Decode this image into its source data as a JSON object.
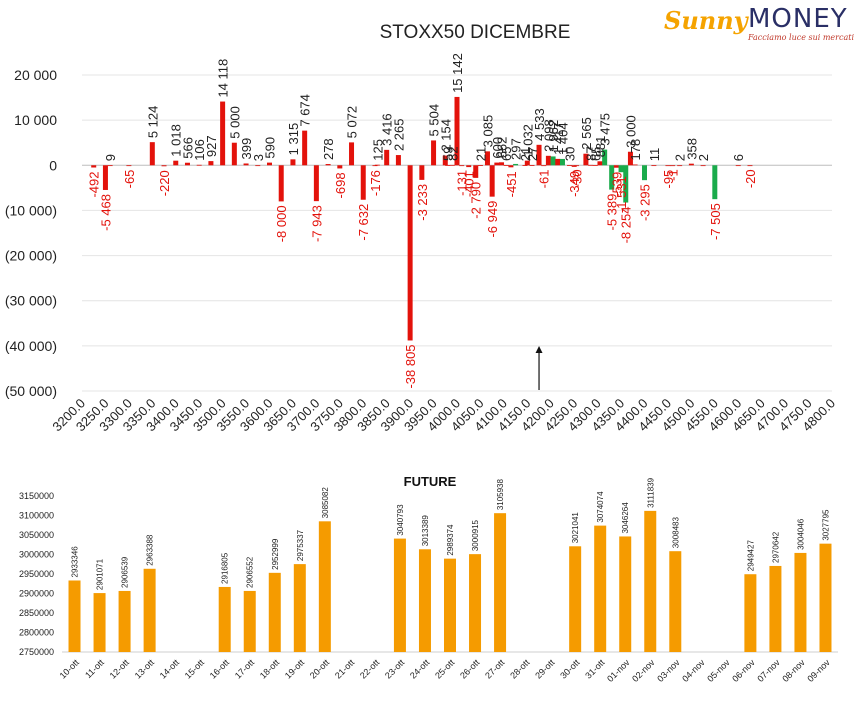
{
  "logo": {
    "brand_left": "Sunny",
    "brand_right": "MONEY",
    "tagline": "Facciamo luce sui mercati"
  },
  "chart_data": [
    {
      "type": "bar",
      "title": "STOXX50 DICEMBRE",
      "ylim": [
        -50000,
        20000
      ],
      "y_ticks": [
        20000,
        10000,
        0,
        -10000,
        -20000,
        -30000,
        -40000,
        -50000
      ],
      "y_tick_labels": [
        "20 000",
        "10 000",
        "0",
        "(10 000)",
        "(20 000)",
        "(30 000)",
        "(40 000)",
        "(50 000)"
      ],
      "x_ticks": [
        3200,
        3250,
        3300,
        3350,
        3400,
        3450,
        3500,
        3550,
        3600,
        3650,
        3700,
        3750,
        3800,
        3850,
        3900,
        3950,
        4000,
        4050,
        4100,
        4150,
        4200,
        4250,
        4300,
        4350,
        4400,
        4450,
        4500,
        4550,
        4600,
        4650,
        4700,
        4750,
        4800
      ],
      "x_tick_labels": [
        "3200.0",
        "3250.0",
        "3300.0",
        "3350.0",
        "3400.0",
        "3450.0",
        "3500.0",
        "3550.0",
        "3600.0",
        "3650.0",
        "3700.0",
        "3750.0",
        "3800.0",
        "3850.0",
        "3900.0",
        "3950.0",
        "4000.0",
        "4050.0",
        "4100.0",
        "4150.0",
        "4200.0",
        "4250.0",
        "4300.0",
        "4350.0",
        "4400.0",
        "4450.0",
        "4500.0",
        "4550.0",
        "4600.0",
        "4650.0",
        "4700.0",
        "4750.0",
        "4800.0"
      ],
      "grid": true,
      "colors": {
        "red": "#e3120b",
        "green": "#1aab4b",
        "negative_label": "#e3120b",
        "positive_label": "#222222"
      },
      "marker_arrow_x": 4175,
      "bars": [
        {
          "x": 3225,
          "value": -492,
          "label": "-492",
          "color": "red"
        },
        {
          "x": 3250,
          "value": -5468,
          "label": "-5 468",
          "color": "red"
        },
        {
          "x": 3260,
          "value": 9,
          "label": "9",
          "color": "red"
        },
        {
          "x": 3300,
          "value": -65,
          "label": "-65",
          "color": "red"
        },
        {
          "x": 3350,
          "value": 5124,
          "label": "5 124",
          "color": "red"
        },
        {
          "x": 3375,
          "value": -220,
          "label": "-220",
          "color": "red"
        },
        {
          "x": 3400,
          "value": 1018,
          "label": "1 018",
          "color": "red"
        },
        {
          "x": 3425,
          "value": 566,
          "label": "566",
          "color": "red"
        },
        {
          "x": 3450,
          "value": 106,
          "label": "106",
          "color": "red"
        },
        {
          "x": 3475,
          "value": 927,
          "label": "927",
          "color": "red"
        },
        {
          "x": 3500,
          "value": 14118,
          "label": "14 118",
          "color": "red"
        },
        {
          "x": 3525,
          "value": 5000,
          "label": "5 000",
          "color": "red"
        },
        {
          "x": 3550,
          "value": 399,
          "label": "399",
          "color": "red"
        },
        {
          "x": 3575,
          "value": 3,
          "label": "3",
          "color": "red"
        },
        {
          "x": 3600,
          "value": 590,
          "label": "590",
          "color": "red"
        },
        {
          "x": 3625,
          "value": -8000,
          "label": "-8 000",
          "color": "red"
        },
        {
          "x": 3650,
          "value": 1315,
          "label": "1 315",
          "color": "red"
        },
        {
          "x": 3675,
          "value": 7674,
          "label": "7 674",
          "color": "red"
        },
        {
          "x": 3700,
          "value": -7943,
          "label": "-7 943",
          "color": "red"
        },
        {
          "x": 3725,
          "value": 278,
          "label": "278",
          "color": "red"
        },
        {
          "x": 3750,
          "value": -698,
          "label": "-698",
          "color": "red"
        },
        {
          "x": 3775,
          "value": 5072,
          "label": "5 072",
          "color": "red"
        },
        {
          "x": 3800,
          "value": -7632,
          "label": "-7 632",
          "color": "red"
        },
        {
          "x": 3825,
          "value": -176,
          "label": "-176",
          "color": "red"
        },
        {
          "x": 3830,
          "value": 125,
          "label": "125",
          "color": "red"
        },
        {
          "x": 3850,
          "value": 3416,
          "label": "3 416",
          "color": "red"
        },
        {
          "x": 3875,
          "value": 2265,
          "label": "2 265",
          "color": "red"
        },
        {
          "x": 3900,
          "value": -38805,
          "label": "-38 805",
          "color": "red"
        },
        {
          "x": 3925,
          "value": -3233,
          "label": "-3 233",
          "color": "red"
        },
        {
          "x": 3950,
          "value": 5504,
          "label": "5 504",
          "color": "red"
        },
        {
          "x": 3975,
          "value": 2154,
          "label": "2 154",
          "color": "red"
        },
        {
          "x": 3980,
          "value": 59,
          "label": "59",
          "color": "red"
        },
        {
          "x": 3990,
          "value": 82,
          "label": "82",
          "color": "red"
        },
        {
          "x": 4000,
          "value": 15142,
          "label": "15 142",
          "color": "red"
        },
        {
          "x": 4010,
          "value": -131,
          "label": "-131",
          "color": "red"
        },
        {
          "x": 4025,
          "value": -401,
          "label": "-401",
          "color": "red"
        },
        {
          "x": 4040,
          "value": -2790,
          "label": "-2 790",
          "color": "red"
        },
        {
          "x": 4050,
          "value": 21,
          "label": "21",
          "color": "red"
        },
        {
          "x": 4065,
          "value": 3085,
          "label": "3 085",
          "color": "red"
        },
        {
          "x": 4075,
          "value": -6949,
          "label": "-6 949",
          "color": "red"
        },
        {
          "x": 4085,
          "value": 600,
          "label": "600",
          "color": "red"
        },
        {
          "x": 4095,
          "value": 662,
          "label": "662",
          "color": "red"
        },
        {
          "x": 4105,
          "value": 65,
          "label": "65",
          "color": "red"
        },
        {
          "x": 4115,
          "value": -451,
          "label": "-451",
          "color": "red"
        },
        {
          "x": 4125,
          "value": 297,
          "label": "297",
          "color": "green"
        },
        {
          "x": 4145,
          "value": 21,
          "label": "21",
          "color": "red"
        },
        {
          "x": 4150,
          "value": 1032,
          "label": "1 032",
          "color": "red"
        },
        {
          "x": 4160,
          "value": 27,
          "label": "27",
          "color": "red"
        },
        {
          "x": 4175,
          "value": 4533,
          "label": "4 533",
          "color": "red"
        },
        {
          "x": 4185,
          "value": -61,
          "label": "-61",
          "color": "red"
        },
        {
          "x": 4195,
          "value": 2098,
          "label": "2 098",
          "color": "red"
        },
        {
          "x": 4205,
          "value": 1962,
          "label": "1 962",
          "color": "green"
        },
        {
          "x": 4215,
          "value": 1417,
          "label": "1 417",
          "color": "red"
        },
        {
          "x": 4225,
          "value": 1404,
          "label": "1 404",
          "color": "green"
        },
        {
          "x": 4240,
          "value": 30,
          "label": "30",
          "color": "red"
        },
        {
          "x": 4250,
          "value": -349,
          "label": "-349",
          "color": "red"
        },
        {
          "x": 4255,
          "value": -30,
          "label": "-30",
          "color": "red"
        },
        {
          "x": 4275,
          "value": 2565,
          "label": "2 565",
          "color": "red"
        },
        {
          "x": 4285,
          "value": 87,
          "label": "87",
          "color": "red"
        },
        {
          "x": 4295,
          "value": 65,
          "label": "65",
          "color": "red"
        },
        {
          "x": 4305,
          "value": 881,
          "label": "881",
          "color": "red"
        },
        {
          "x": 4315,
          "value": 3475,
          "label": "3 475",
          "color": "green"
        },
        {
          "x": 4330,
          "value": -5389,
          "label": "-5 389",
          "color": "green"
        },
        {
          "x": 4340,
          "value": -539,
          "label": "-539",
          "color": "red"
        },
        {
          "x": 4350,
          "value": -1531,
          "label": "-1 531",
          "color": "green"
        },
        {
          "x": 4360,
          "value": -8254,
          "label": "-8 254",
          "color": "green"
        },
        {
          "x": 4370,
          "value": 3000,
          "label": "3 000",
          "color": "red"
        },
        {
          "x": 4380,
          "value": 178,
          "label": "178",
          "color": "red"
        },
        {
          "x": 4400,
          "value": -3295,
          "label": "-3 295",
          "color": "green"
        },
        {
          "x": 4420,
          "value": 11,
          "label": "11",
          "color": "red"
        },
        {
          "x": 4450,
          "value": -95,
          "label": "-95",
          "color": "red"
        },
        {
          "x": 4460,
          "value": -1,
          "label": "-1",
          "color": "red"
        },
        {
          "x": 4475,
          "value": 2,
          "label": "2",
          "color": "red"
        },
        {
          "x": 4500,
          "value": 358,
          "label": "358",
          "color": "red"
        },
        {
          "x": 4525,
          "value": 2,
          "label": "2",
          "color": "red"
        },
        {
          "x": 4550,
          "value": -7505,
          "label": "-7 505",
          "color": "green"
        },
        {
          "x": 4600,
          "value": 6,
          "label": "6",
          "color": "red"
        },
        {
          "x": 4625,
          "value": -20,
          "label": "-20",
          "color": "red"
        }
      ]
    },
    {
      "type": "bar",
      "title": "FUTURE",
      "ylim": [
        2750000,
        3150000
      ],
      "y_ticks": [
        2750000,
        2800000,
        2850000,
        2900000,
        2950000,
        3000000,
        3050000,
        3100000,
        3150000
      ],
      "y_tick_labels": [
        "2750000",
        "2800000",
        "2850000",
        "2900000",
        "2950000",
        "3000000",
        "3050000",
        "3100000",
        "3150000"
      ],
      "grid": false,
      "colors": {
        "bar": "#f59b00"
      },
      "categories": [
        "10-ott",
        "11-ott",
        "12-ott",
        "13-ott",
        "14-ott",
        "15-ott",
        "16-ott",
        "17-ott",
        "18-ott",
        "19-ott",
        "20-ott",
        "21-ott",
        "22-ott",
        "23-ott",
        "24-ott",
        "25-ott",
        "26-ott",
        "27-ott",
        "28-ott",
        "29-ott",
        "30-ott",
        "31-ott",
        "01-nov",
        "02-nov",
        "03-nov",
        "04-nov",
        "05-nov",
        "06-nov",
        "07-nov",
        "08-nov",
        "09-nov"
      ],
      "values": [
        2933346,
        2901071,
        2906539,
        2963388,
        null,
        null,
        2916805,
        2906552,
        2952999,
        2975337,
        3085082,
        null,
        null,
        3040793,
        3013389,
        2989374,
        3000915,
        3105938,
        null,
        null,
        3021041,
        3074074,
        3046264,
        3111839,
        3008483,
        null,
        null,
        2949427,
        2970642,
        3004046,
        3027795
      ]
    }
  ]
}
